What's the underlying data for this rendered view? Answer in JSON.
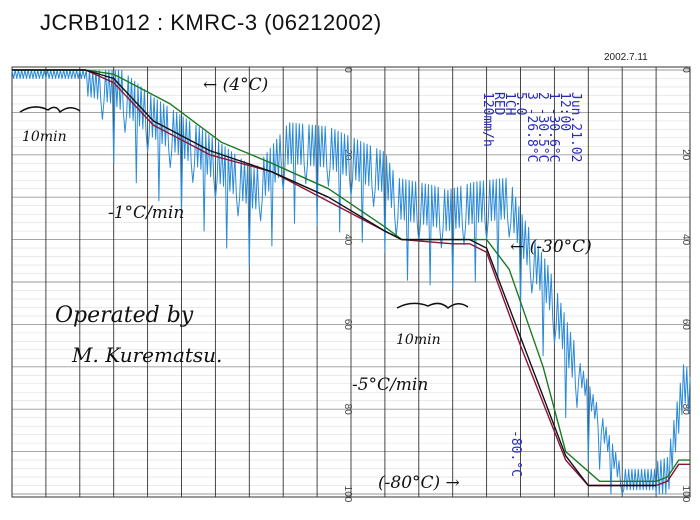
{
  "header": {
    "title": "JCRB1012 : KMRC-3 (06212002)",
    "date": "2002.7.11"
  },
  "recorder_block": {
    "lines": [
      "Jun.21.02",
      "12:00",
      "1     -30.6°C",
      "2     -30.5°C",
      "3     -26.8°C",
      "5.0",
      "1CH",
      "RED",
      "120mm/h"
    ]
  },
  "annotations": {
    "hold_4c": "← (4°C)",
    "ten_min_1": "10min",
    "rate_1": "-1°C/min",
    "hold_30c": "← (-30°C)",
    "ten_min_2": "10min",
    "operated_by": "Operated by",
    "operator": "M. Kurematsu.",
    "rate_5": "-5°C/min",
    "hold_80c": "(-80°C) →",
    "trace_label": "-80.°C"
  },
  "chart_data": {
    "type": "line",
    "title": "JCRB1012 : KMRC-3 (06212002)",
    "xlabel": "",
    "ylabel": "",
    "x_unit": "minutes (approx., from 10min scale marks)",
    "xlim": [
      0,
      120
    ],
    "ylim": [
      0,
      100
    ],
    "y_axis_inverted": true,
    "y_ticks": [
      0,
      20,
      40,
      60,
      80,
      100
    ],
    "y_tick_labels": [
      "0",
      "20",
      "40",
      "60",
      "80",
      "100"
    ],
    "grid": true,
    "series": [
      {
        "color": "#2a8ad8",
        "noisy": true,
        "x": [
          0,
          13,
          18,
          25,
          33,
          43,
          49,
          56,
          66,
          68,
          75,
          77,
          82,
          88,
          90,
          95,
          99,
          104,
          108,
          114,
          116,
          119,
          120
        ],
        "y": [
          0,
          0,
          2,
          10,
          17,
          27,
          16,
          17,
          23,
          29,
          31,
          32,
          30,
          29,
          37,
          50,
          66,
          82,
          96,
          96,
          95,
          72,
          76
        ]
      },
      {
        "color": "#8a1535",
        "noisy": false,
        "x": [
          0,
          13,
          18,
          25,
          35,
          46,
          56,
          66,
          69,
          78,
          81,
          84,
          90,
          98,
          102,
          110,
          114,
          116,
          118,
          120
        ],
        "y": [
          0,
          0,
          3,
          13,
          20,
          24,
          31,
          38,
          40,
          41,
          41,
          43,
          65,
          92,
          98,
          98,
          98,
          97,
          93,
          93
        ]
      },
      {
        "color": "#1a7a22",
        "noisy": false,
        "x": [
          0,
          13,
          18,
          28,
          37,
          46,
          56,
          66,
          69,
          78,
          84,
          88,
          94,
          98,
          104,
          110,
          114,
          116,
          118,
          120
        ],
        "y": [
          0,
          0,
          1,
          8,
          17,
          22,
          28,
          37,
          40,
          40,
          40,
          47,
          70,
          90,
          97,
          97,
          97,
          96,
          92,
          92
        ]
      },
      {
        "color": "#111111",
        "noisy": false,
        "x": [
          0,
          13,
          18,
          25,
          35,
          46,
          56,
          66,
          69,
          78,
          81,
          84,
          90,
          98,
          102,
          110,
          114
        ],
        "y": [
          0,
          0,
          2,
          12,
          19,
          24,
          30,
          38,
          40,
          40,
          40,
          42,
          63,
          91,
          98,
          98,
          98
        ]
      }
    ]
  }
}
